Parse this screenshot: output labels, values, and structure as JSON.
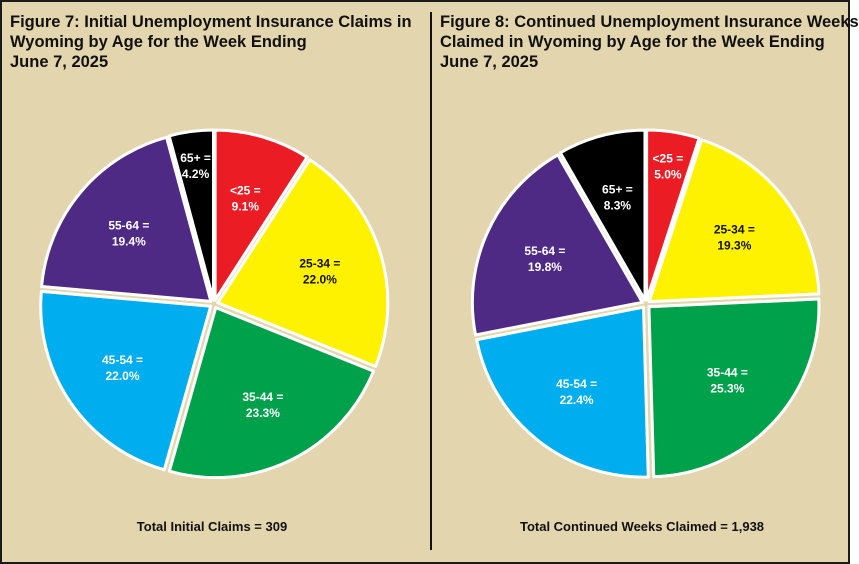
{
  "colors": {
    "red": "#ec1c24",
    "yellow": "#fff200",
    "green": "#00a14b",
    "blue": "#00aeef",
    "purple": "#4e2a84",
    "black": "#000000",
    "background": "#e3d5ad"
  },
  "chart_data": [
    {
      "type": "pie",
      "title_lines": [
        "Figure 7: Initial Unemployment Insurance Claims in",
        "Wyoming by Age for the Week Ending",
        "June 7, 2025"
      ],
      "total_label": "Total Initial Claims = 309",
      "slices": [
        {
          "name": "<25",
          "label_top": "<25 =",
          "label_bottom": "9.1%",
          "value": 9.1,
          "color": "#ec1c24",
          "text_color": "#ffffff"
        },
        {
          "name": "25-34",
          "label_top": "25-34 =",
          "label_bottom": "22.0%",
          "value": 22.0,
          "color": "#fff200",
          "text_color": "#111111"
        },
        {
          "name": "35-44",
          "label_top": "35-44 =",
          "label_bottom": "23.3%",
          "value": 23.3,
          "color": "#00a14b",
          "text_color": "#ffffff"
        },
        {
          "name": "45-54",
          "label_top": "45-54 =",
          "label_bottom": "22.0%",
          "value": 22.0,
          "color": "#00aeef",
          "text_color": "#ffffff"
        },
        {
          "name": "55-64",
          "label_top": "55-64 =",
          "label_bottom": "19.4%",
          "value": 19.4,
          "color": "#4e2a84",
          "text_color": "#ffffff"
        },
        {
          "name": "65+",
          "label_top": "65+ =",
          "label_bottom": "4.2%",
          "value": 4.2,
          "color": "#000000",
          "text_color": "#ffffff"
        }
      ]
    },
    {
      "type": "pie",
      "title_lines": [
        "Figure 8: Continued Unemployment Insurance Weeks",
        "Claimed in Wyoming by Age for the Week Ending",
        "June 7, 2025"
      ],
      "total_label": "Total Continued Weeks Claimed = 1,938",
      "slices": [
        {
          "name": "<25",
          "label_top": "<25 =",
          "label_bottom": "5.0%",
          "value": 5.0,
          "color": "#ec1c24",
          "text_color": "#ffffff"
        },
        {
          "name": "25-34",
          "label_top": "25-34 =",
          "label_bottom": "19.3%",
          "value": 19.3,
          "color": "#fff200",
          "text_color": "#111111"
        },
        {
          "name": "35-44",
          "label_top": "35-44 =",
          "label_bottom": "25.3%",
          "value": 25.3,
          "color": "#00a14b",
          "text_color": "#ffffff"
        },
        {
          "name": "45-54",
          "label_top": "45-54 =",
          "label_bottom": "22.4%",
          "value": 22.4,
          "color": "#00aeef",
          "text_color": "#ffffff"
        },
        {
          "name": "55-64",
          "label_top": "55-64 =",
          "label_bottom": "19.8%",
          "value": 19.8,
          "color": "#4e2a84",
          "text_color": "#ffffff"
        },
        {
          "name": "65+",
          "label_top": "65+ =",
          "label_bottom": "8.3%",
          "value": 8.3,
          "color": "#000000",
          "text_color": "#ffffff"
        }
      ]
    }
  ]
}
